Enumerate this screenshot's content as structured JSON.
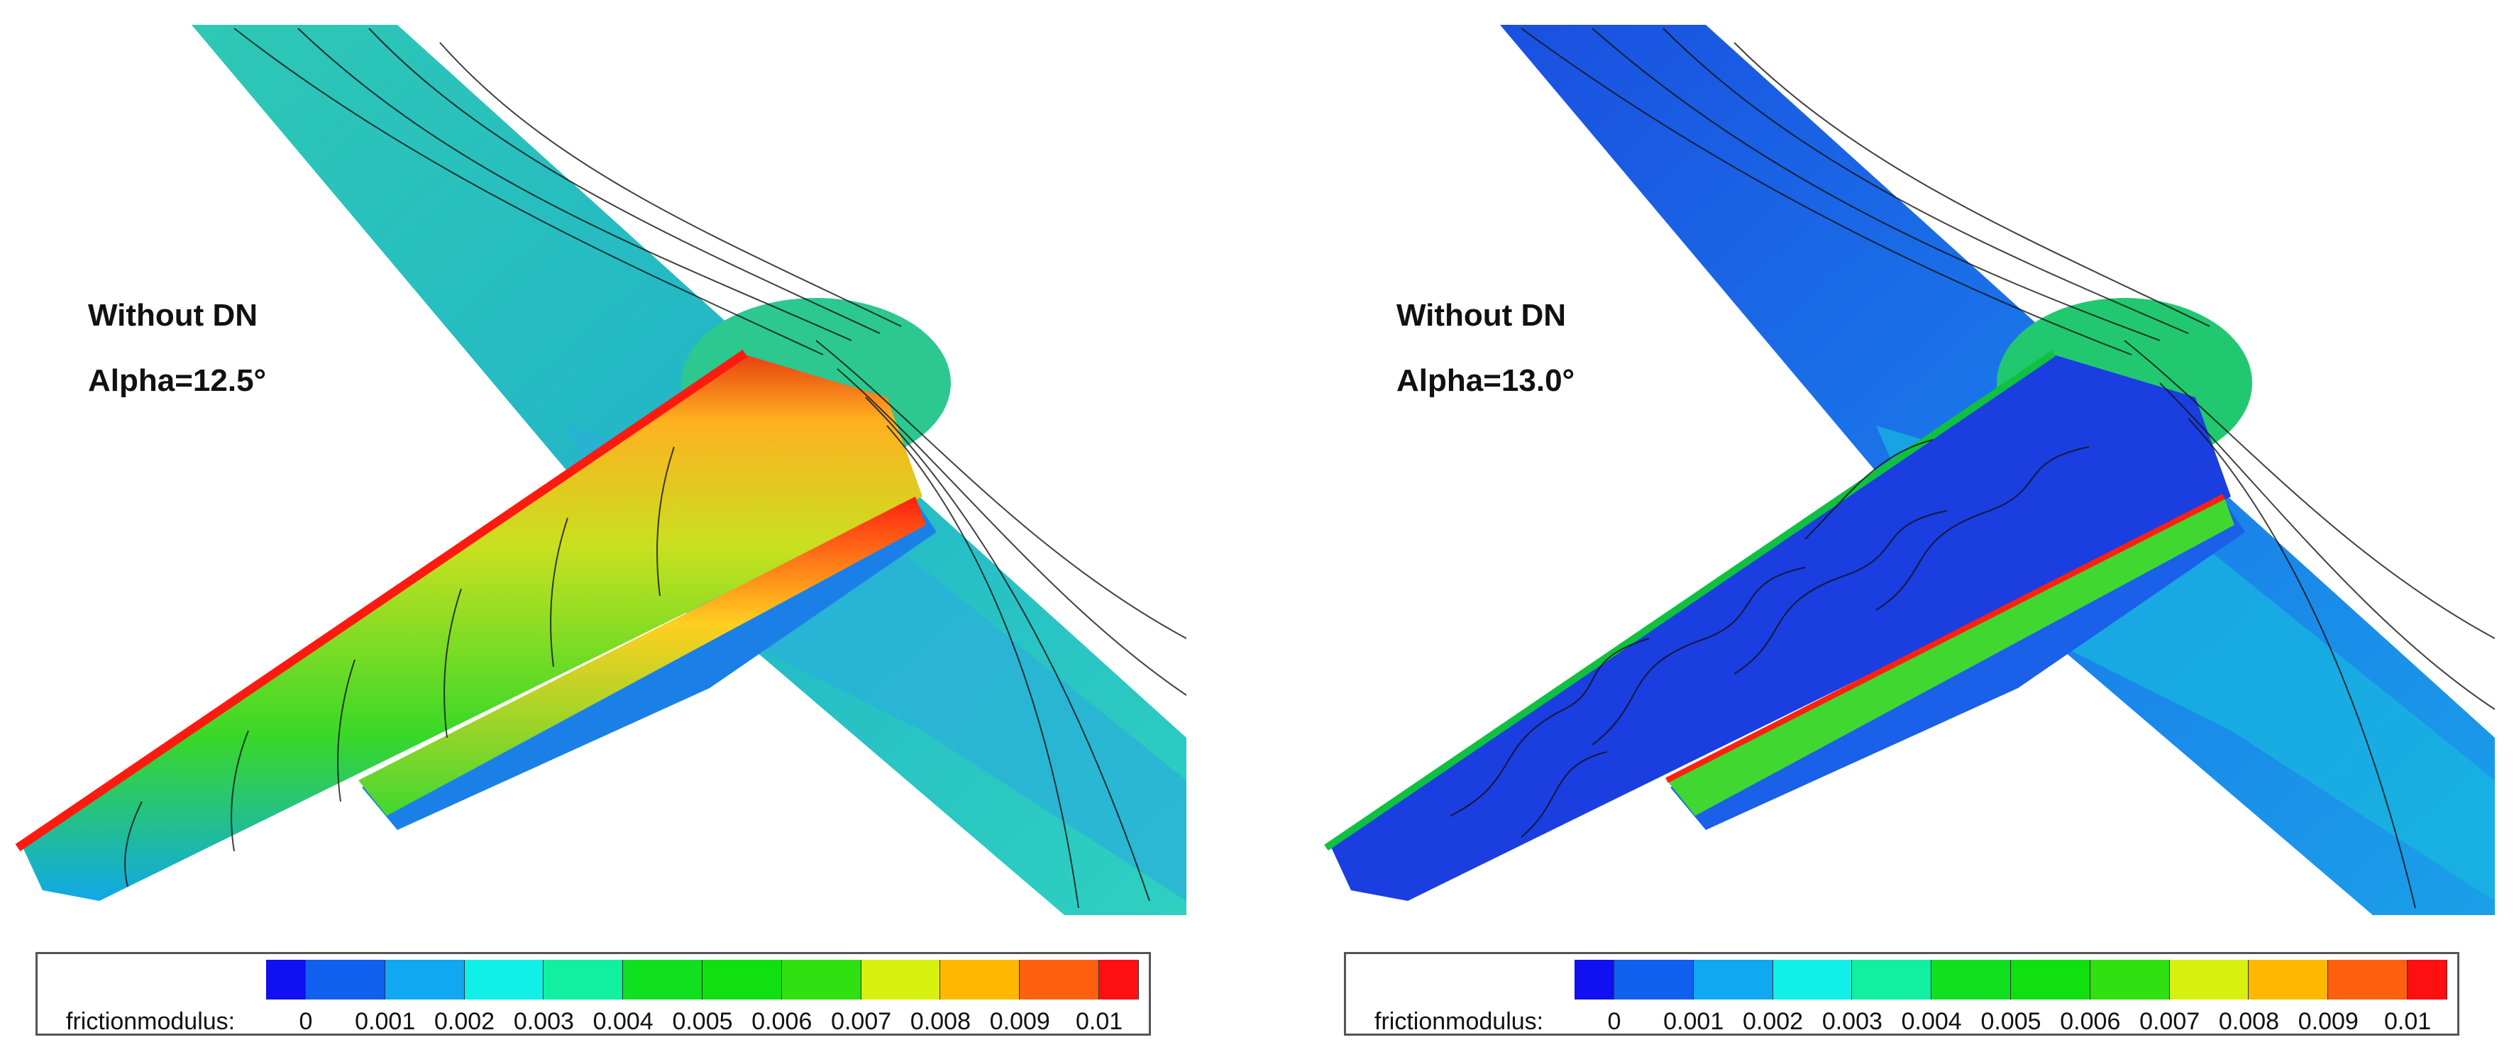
{
  "legend": {
    "name": "frictionmodulus:",
    "ticks": [
      "0",
      "0.001",
      "0.002",
      "0.003",
      "0.004",
      "0.005",
      "0.006",
      "0.007",
      "0.008",
      "0.009",
      "0.01"
    ],
    "colors": [
      "#1010f0",
      "#1060f0",
      "#10a8f0",
      "#10f0e8",
      "#10f0a0",
      "#10e020",
      "#10e010",
      "#30e010",
      "#d8f010",
      "#ffb800",
      "#ff6010",
      "#ff1010"
    ]
  },
  "panels": [
    {
      "title": "Without DN",
      "alpha": "Alpha=12.5°"
    },
    {
      "title": "Without DN",
      "alpha": "Alpha=13.0°"
    }
  ]
}
